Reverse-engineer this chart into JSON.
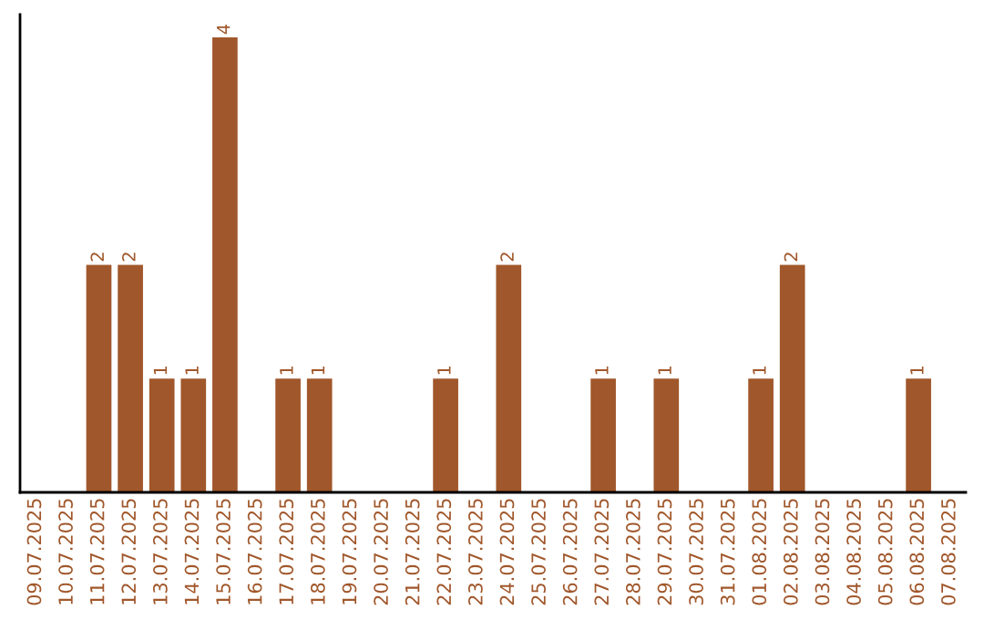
{
  "chart_data": {
    "type": "bar",
    "categories": [
      "09.07.2025",
      "10.07.2025",
      "11.07.2025",
      "12.07.2025",
      "13.07.2025",
      "14.07.2025",
      "15.07.2025",
      "16.07.2025",
      "17.07.2025",
      "18.07.2025",
      "19.07.2025",
      "20.07.2025",
      "21.07.2025",
      "22.07.2025",
      "23.07.2025",
      "24.07.2025",
      "25.07.2025",
      "26.07.2025",
      "27.07.2025",
      "28.07.2025",
      "29.07.2025",
      "30.07.2025",
      "31.07.2025",
      "01.08.2025",
      "02.08.2025",
      "03.08.2025",
      "04.08.2025",
      "05.08.2025",
      "06.08.2025",
      "07.08.2025"
    ],
    "values": [
      0,
      0,
      2,
      2,
      1,
      1,
      4,
      0,
      1,
      1,
      0,
      0,
      0,
      1,
      0,
      2,
      0,
      0,
      1,
      0,
      1,
      0,
      0,
      1,
      2,
      0,
      0,
      0,
      1,
      0
    ],
    "value_labels": [
      null,
      null,
      "2",
      "2",
      "1",
      "1",
      "4",
      null,
      "1",
      "1",
      null,
      null,
      null,
      "1",
      null,
      "2",
      null,
      null,
      "1",
      null,
      "1",
      null,
      null,
      "1",
      "2",
      null,
      null,
      null,
      "1",
      null
    ],
    "color": "#a0572b",
    "tick_labels": "x",
    "grid": false,
    "legend": false
  }
}
